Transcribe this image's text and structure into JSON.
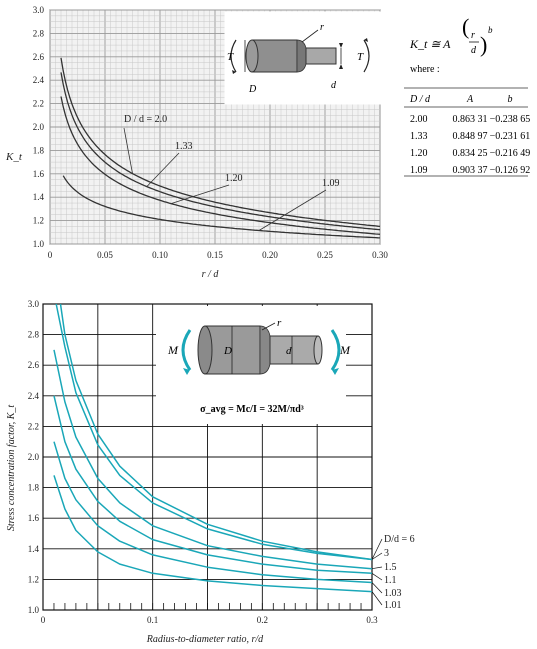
{
  "chart_data": [
    {
      "type": "line",
      "ylabel": "K_t",
      "xlabel": "r / d",
      "xlim": [
        0,
        0.3
      ],
      "ylim": [
        1.0,
        3.0
      ],
      "x_ticks": [
        "0",
        "0.05",
        "0.10",
        "0.15",
        "0.20",
        "0.25",
        "0.30"
      ],
      "y_ticks": [
        "1.0",
        "1.2",
        "1.4",
        "1.6",
        "1.8",
        "2.0",
        "2.2",
        "2.4",
        "2.6",
        "2.8",
        "3.0"
      ],
      "grid": true,
      "formula": {
        "lhs": "K_t ≅ A",
        "frac_top": "r",
        "frac_bottom": "d",
        "exponent": "b",
        "where": "where :"
      },
      "table": {
        "headers": [
          "D / d",
          "A",
          "b"
        ],
        "rows": [
          [
            "2.00",
            "0.863 31",
            "−0.238 65"
          ],
          [
            "1.33",
            "0.848 97",
            "−0.231 61"
          ],
          [
            "1.20",
            "0.834 25",
            "−0.216 49"
          ],
          [
            "1.09",
            "0.903 37",
            "−0.126 92"
          ]
        ]
      },
      "series": [
        {
          "name": "D / d = 2.0",
          "A": 0.86331,
          "b": -0.23865
        },
        {
          "name": "1.33",
          "A": 0.84897,
          "b": -0.23161
        },
        {
          "name": "1.20",
          "A": 0.83425,
          "b": -0.21649
        },
        {
          "name": "1.09",
          "A": 0.90337,
          "b": -0.12692
        }
      ],
      "diagram_labels": {
        "r": "r",
        "T_left": "T",
        "T_right": "T",
        "D": "D",
        "d": "d"
      }
    },
    {
      "type": "line",
      "ylabel": "Stress concentration factor, K_t",
      "xlabel": "Radius-to-diameter ratio, r/d",
      "xlim": [
        0,
        0.3
      ],
      "ylim": [
        1.0,
        3.0
      ],
      "x_ticks": [
        "0",
        "0.1",
        "0.2",
        "0.3"
      ],
      "y_ticks": [
        "1.0",
        "1.2",
        "1.4",
        "1.6",
        "1.8",
        "2.0",
        "2.2",
        "2.4",
        "2.6",
        "2.8",
        "3.0"
      ],
      "grid": true,
      "formula": "σ_avg = Mc/I = 32M/πd³",
      "line_color": "#1aa7b8",
      "series": [
        {
          "name": "D/d = 6",
          "x": [
            0.012,
            0.02,
            0.03,
            0.05,
            0.07,
            0.1,
            0.15,
            0.2,
            0.25,
            0.3
          ],
          "y": [
            3.0,
            2.72,
            2.42,
            2.08,
            1.88,
            1.7,
            1.53,
            1.43,
            1.37,
            1.33
          ]
        },
        {
          "name": "3",
          "x": [
            0.016,
            0.02,
            0.03,
            0.05,
            0.07,
            0.1,
            0.15,
            0.2,
            0.25,
            0.3
          ],
          "y": [
            3.0,
            2.8,
            2.5,
            2.15,
            1.94,
            1.74,
            1.56,
            1.45,
            1.38,
            1.33
          ]
        },
        {
          "name": "1.5",
          "x": [
            0.01,
            0.02,
            0.03,
            0.05,
            0.07,
            0.1,
            0.15,
            0.2,
            0.25,
            0.3
          ],
          "y": [
            2.7,
            2.36,
            2.13,
            1.86,
            1.7,
            1.55,
            1.42,
            1.35,
            1.3,
            1.27
          ]
        },
        {
          "name": "1.1",
          "x": [
            0.01,
            0.02,
            0.03,
            0.05,
            0.07,
            0.1,
            0.15,
            0.2,
            0.25,
            0.3
          ],
          "y": [
            2.4,
            2.1,
            1.92,
            1.71,
            1.58,
            1.46,
            1.36,
            1.3,
            1.26,
            1.24
          ]
        },
        {
          "name": "1.03",
          "x": [
            0.01,
            0.02,
            0.03,
            0.05,
            0.07,
            0.1,
            0.15,
            0.2,
            0.25,
            0.3
          ],
          "y": [
            2.1,
            1.86,
            1.72,
            1.55,
            1.45,
            1.36,
            1.28,
            1.23,
            1.2,
            1.18
          ]
        },
        {
          "name": "1.01",
          "x": [
            0.01,
            0.02,
            0.03,
            0.05,
            0.07,
            0.1,
            0.15,
            0.2,
            0.25,
            0.3
          ],
          "y": [
            1.88,
            1.66,
            1.52,
            1.38,
            1.3,
            1.24,
            1.19,
            1.16,
            1.14,
            1.12
          ]
        }
      ],
      "diagram_labels": {
        "r": "r",
        "M_left": "M",
        "M_right": "M",
        "D": "D",
        "d": "d"
      }
    }
  ]
}
